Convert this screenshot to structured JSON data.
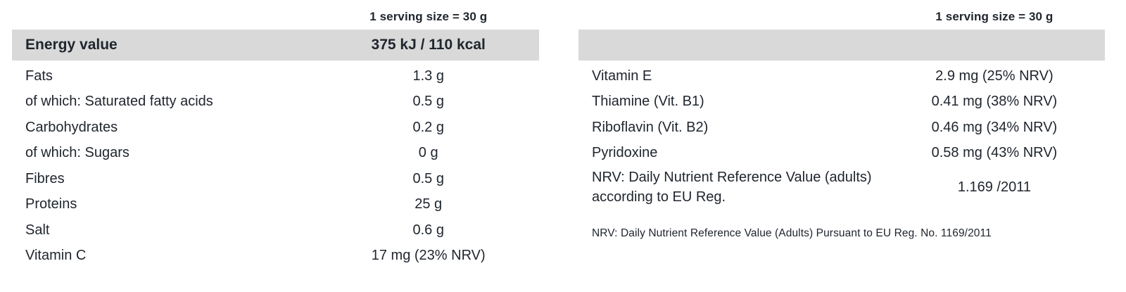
{
  "colors": {
    "text": "#20262e",
    "header_background": "#d9d9d9",
    "page_background": "#ffffff"
  },
  "left_table": {
    "serving_note": "1 serving size = 30 g",
    "header": {
      "label": "Energy value",
      "value": "375 kJ / 110 kcal"
    },
    "rows": [
      {
        "label": "Fats",
        "value": "1.3 g"
      },
      {
        "label": "of which: Saturated fatty acids",
        "value": "0.5 g"
      },
      {
        "label": "Carbohydrates",
        "value": "0.2 g"
      },
      {
        "label": "of which: Sugars",
        "value": "0 g"
      },
      {
        "label": "Fibres",
        "value": "0.5 g"
      },
      {
        "label": "Proteins",
        "value": "25 g"
      },
      {
        "label": "Salt",
        "value": "0.6 g"
      },
      {
        "label": "Vitamin C",
        "value": "17 mg (23% NRV)"
      }
    ]
  },
  "right_table": {
    "serving_note": "1 serving size = 30 g",
    "rows": [
      {
        "label": "Vitamin E",
        "value": "2.9 mg (25% NRV)"
      },
      {
        "label": "Thiamine (Vit. B1)",
        "value": "0.41 mg (38% NRV)"
      },
      {
        "label": "Riboflavin (Vit. B2)",
        "value": "0.46 mg (34% NRV)"
      },
      {
        "label": "Pyridoxine",
        "value": "0.58 mg (43% NRV)"
      },
      {
        "label": "NRV: Daily Nutrient Reference Value (adults) according to EU Reg.",
        "value": "1.169 /2011"
      }
    ],
    "footnote": "NRV: Daily Nutrient Reference Value (Adults) Pursuant to EU Reg. No. 1169/2011"
  }
}
